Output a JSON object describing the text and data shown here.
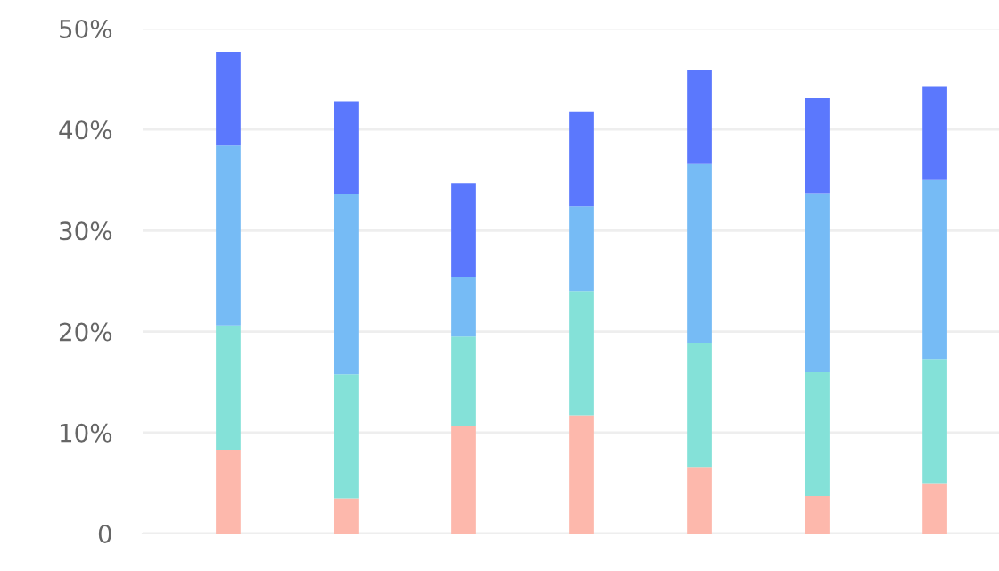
{
  "chart_data": {
    "type": "bar",
    "stacked": true,
    "categories": [
      null,
      null,
      null,
      null,
      null,
      null,
      null
    ],
    "series": [
      {
        "color": "#fdb8ac",
        "values": [
          8.3,
          3.5,
          10.7,
          11.7,
          6.6,
          3.7,
          5.0
        ]
      },
      {
        "color": "#84e1d8",
        "values": [
          12.3,
          12.3,
          8.8,
          12.3,
          12.3,
          12.3,
          12.3
        ]
      },
      {
        "color": "#76bbf5",
        "values": [
          17.8,
          17.8,
          5.9,
          8.4,
          17.7,
          17.7,
          17.7
        ]
      },
      {
        "color": "#5b78fd",
        "values": [
          9.3,
          9.2,
          9.3,
          9.4,
          9.3,
          9.4,
          9.3
        ]
      }
    ],
    "ylim": [
      0,
      50
    ],
    "yticks": [
      {
        "value": 0,
        "label": "0"
      },
      {
        "value": 10,
        "label": "10%"
      },
      {
        "value": 20,
        "label": "20%"
      },
      {
        "value": 30,
        "label": "30%"
      },
      {
        "value": 40,
        "label": "40%"
      },
      {
        "value": 50,
        "label": "50%"
      }
    ],
    "grid": "y",
    "tick_labels": "y"
  }
}
